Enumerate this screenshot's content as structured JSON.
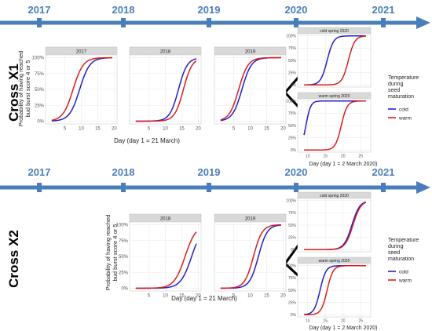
{
  "colors": {
    "timeline": "#4a7ebb",
    "cold": "#2020c8",
    "warm": "#d81e1e",
    "strip": "#d9d9d9",
    "grid": "#ebebeb"
  },
  "timelines": [
    {
      "years": [
        "2017",
        "2018",
        "2019",
        "2020",
        "2021"
      ]
    },
    {
      "years": [
        "2017",
        "2018",
        "2019",
        "2020",
        "2021"
      ]
    }
  ],
  "crosses": [
    "Cross X1",
    "Cross X2"
  ],
  "y_axis_title": [
    "Probability of having reached",
    "bud burst score 4 or 5"
  ],
  "x_axis_title_main": "Day (day 1 = 21 March)",
  "x_axis_title_2020": "Day (day 1 = 2 March 2020)",
  "legend": {
    "title_lines": [
      "Temperature",
      "during",
      "seed",
      "maturation"
    ],
    "items": [
      "cold",
      "warm"
    ]
  },
  "chart_data": [
    {
      "type": "line",
      "cross": "Cross X1",
      "title": "2017",
      "xlim": [
        0,
        20
      ],
      "ylim": [
        0,
        1
      ],
      "xticks": [
        "5",
        "10",
        "15",
        "20"
      ],
      "yticks": [
        "0%",
        "25%",
        "50%",
        "75%",
        "100%"
      ],
      "series": [
        {
          "name": "cold",
          "x50": 9.5,
          "k": 0.65
        },
        {
          "name": "warm",
          "x50": 7.5,
          "k": 0.65
        }
      ]
    },
    {
      "type": "line",
      "cross": "Cross X1",
      "title": "2018",
      "xlim": [
        0,
        20
      ],
      "ylim": [
        0,
        1
      ],
      "xticks": [
        "5",
        "10",
        "15",
        "20"
      ],
      "yticks": [
        "0%",
        "25%",
        "50%",
        "75%",
        "100%"
      ],
      "series": [
        {
          "name": "cold",
          "x50": 14,
          "k": 0.75
        },
        {
          "name": "warm",
          "x50": 15.5,
          "k": 0.75
        }
      ]
    },
    {
      "type": "line",
      "cross": "Cross X1",
      "title": "2019",
      "xlim": [
        0,
        20
      ],
      "ylim": [
        0,
        1
      ],
      "xticks": [
        "5",
        "10",
        "15",
        "20"
      ],
      "yticks": [
        "0%",
        "25%",
        "50%",
        "75%",
        "100%"
      ],
      "series": [
        {
          "name": "cold",
          "x50": 7.5,
          "k": 0.7
        },
        {
          "name": "warm",
          "x50": 6.5,
          "k": 0.7
        }
      ]
    },
    {
      "type": "line",
      "cross": "Cross X1",
      "title": "cold spring 2020",
      "xlim": [
        8,
        27
      ],
      "ylim": [
        0,
        1
      ],
      "xticks": [],
      "yticks": [
        "0%",
        "25%",
        "50%",
        "75%",
        "100%"
      ],
      "series": [
        {
          "name": "cold",
          "x50": 15.5,
          "k": 1.1
        },
        {
          "name": "warm",
          "x50": 21.5,
          "k": 1.1
        }
      ]
    },
    {
      "type": "line",
      "cross": "Cross X1",
      "title": "warm spring 2020",
      "xlim": [
        8,
        27
      ],
      "ylim": [
        0,
        1
      ],
      "xticks": [
        "10",
        "15",
        "20",
        "25"
      ],
      "yticks": [
        "0%",
        "25%",
        "50%",
        "75%",
        "100%"
      ],
      "series": [
        {
          "name": "cold",
          "x50": 9.5,
          "k": 1.5
        },
        {
          "name": "warm",
          "x50": 19.5,
          "k": 1.2
        }
      ]
    },
    {
      "type": "line",
      "cross": "Cross X2",
      "title": "2018",
      "xlim": [
        0,
        20
      ],
      "ylim": [
        0,
        1
      ],
      "xticks": [
        "5",
        "10",
        "15",
        "20"
      ],
      "yticks": [
        "0%",
        "25%",
        "50%",
        "75%",
        "100%"
      ],
      "series": [
        {
          "name": "cold",
          "x50": 18,
          "k": 0.6
        },
        {
          "name": "warm",
          "x50": 16,
          "k": 0.6
        }
      ]
    },
    {
      "type": "line",
      "cross": "Cross X2",
      "title": "2019",
      "xlim": [
        0,
        20
      ],
      "ylim": [
        0,
        1
      ],
      "xticks": [
        "5",
        "10",
        "15",
        "20"
      ],
      "yticks": [
        "0%",
        "25%",
        "50%",
        "75%",
        "100%"
      ],
      "series": [
        {
          "name": "cold",
          "x50": 12.5,
          "k": 0.75
        },
        {
          "name": "warm",
          "x50": 11,
          "k": 0.75
        }
      ]
    },
    {
      "type": "line",
      "cross": "Cross X2",
      "title": "cold spring 2020",
      "xlim": [
        8,
        27
      ],
      "ylim": [
        0,
        1
      ],
      "xticks": [],
      "yticks": [
        "0%",
        "25%",
        "50%",
        "75%",
        "100%"
      ],
      "series": [
        {
          "name": "cold",
          "x50": 22.5,
          "k": 0.9
        },
        {
          "name": "warm",
          "x50": 22.8,
          "k": 0.9
        }
      ]
    },
    {
      "type": "line",
      "cross": "Cross X2",
      "title": "warm spring 2020",
      "xlim": [
        8,
        27
      ],
      "ylim": [
        0,
        1
      ],
      "xticks": [
        "10",
        "15",
        "20",
        "25"
      ],
      "yticks": [
        "0%",
        "25%",
        "50%",
        "75%",
        "100%"
      ],
      "series": [
        {
          "name": "cold",
          "x50": 13.5,
          "k": 1.2
        },
        {
          "name": "warm",
          "x50": 15.5,
          "k": 1.2
        }
      ]
    }
  ]
}
